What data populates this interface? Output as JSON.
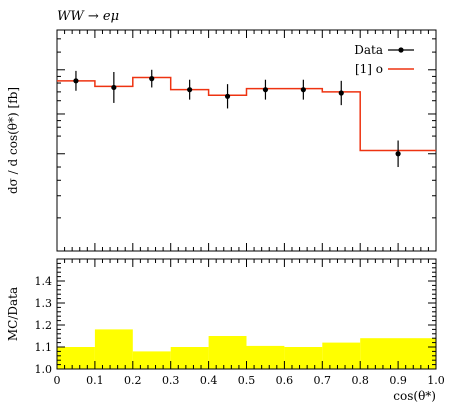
{
  "chart_data": [
    {
      "type": "line",
      "title": "WW → eμ",
      "xlabel": "",
      "ylabel": "dσ / d cos(θ*) [fb]",
      "xlim": [
        0.0,
        1.0
      ],
      "x_tick_labels": [
        "0",
        "0.1",
        "0.2",
        "0.3",
        "0.4",
        "0.5",
        "0.6",
        "0.7",
        "0.8",
        "0.9",
        "1.0"
      ],
      "y_scale": "log",
      "y_tick_labels": [],
      "grid": false,
      "legend": {
        "placement": "top-right",
        "entries": [
          "Data",
          "[1] o"
        ]
      },
      "series": [
        {
          "name": "Data",
          "style": "points-with-error-bars",
          "color": "#000000",
          "x": [
            0.05,
            0.15,
            0.25,
            0.35,
            0.45,
            0.55,
            0.65,
            0.75,
            0.9
          ],
          "y": [
            0.77,
            0.74,
            0.78,
            0.73,
            0.7,
            0.73,
            0.73,
            0.715,
            0.44
          ],
          "y_err_up": [
            0.045,
            0.07,
            0.04,
            0.045,
            0.055,
            0.045,
            0.045,
            0.055,
            0.06
          ],
          "y_err_down": [
            0.045,
            0.07,
            0.04,
            0.045,
            0.055,
            0.045,
            0.045,
            0.055,
            0.06
          ]
        },
        {
          "name": "[1] o",
          "style": "histogram-step",
          "color": "#ee3311",
          "bin_edges": [
            0.0,
            0.1,
            0.2,
            0.3,
            0.4,
            0.5,
            0.6,
            0.7,
            0.8,
            1.0
          ],
          "values": [
            0.77,
            0.745,
            0.785,
            0.73,
            0.705,
            0.735,
            0.735,
            0.72,
            0.455
          ]
        }
      ]
    },
    {
      "type": "bar",
      "title": "",
      "xlabel": "cos(θ*)",
      "ylabel": "MC/Data",
      "xlim": [
        0.0,
        1.0
      ],
      "x_tick_labels": [
        "0",
        "0.1",
        "0.2",
        "0.3",
        "0.4",
        "0.5",
        "0.6",
        "0.7",
        "0.8",
        "0.9",
        "1.0"
      ],
      "ylim": [
        1.0,
        1.5
      ],
      "y_tick_labels": [
        "1.0",
        "1.1",
        "1.2",
        "1.3",
        "1.4"
      ],
      "grid": false,
      "series": [
        {
          "name": "",
          "style": "filled-band",
          "color": "#ffff00",
          "bin_edges": [
            0.0,
            0.1,
            0.2,
            0.3,
            0.4,
            0.5,
            0.6,
            0.7,
            0.8,
            1.0
          ],
          "values": [
            1.1,
            1.18,
            1.08,
            1.1,
            1.15,
            1.105,
            1.1,
            1.12,
            1.14
          ]
        }
      ]
    }
  ]
}
